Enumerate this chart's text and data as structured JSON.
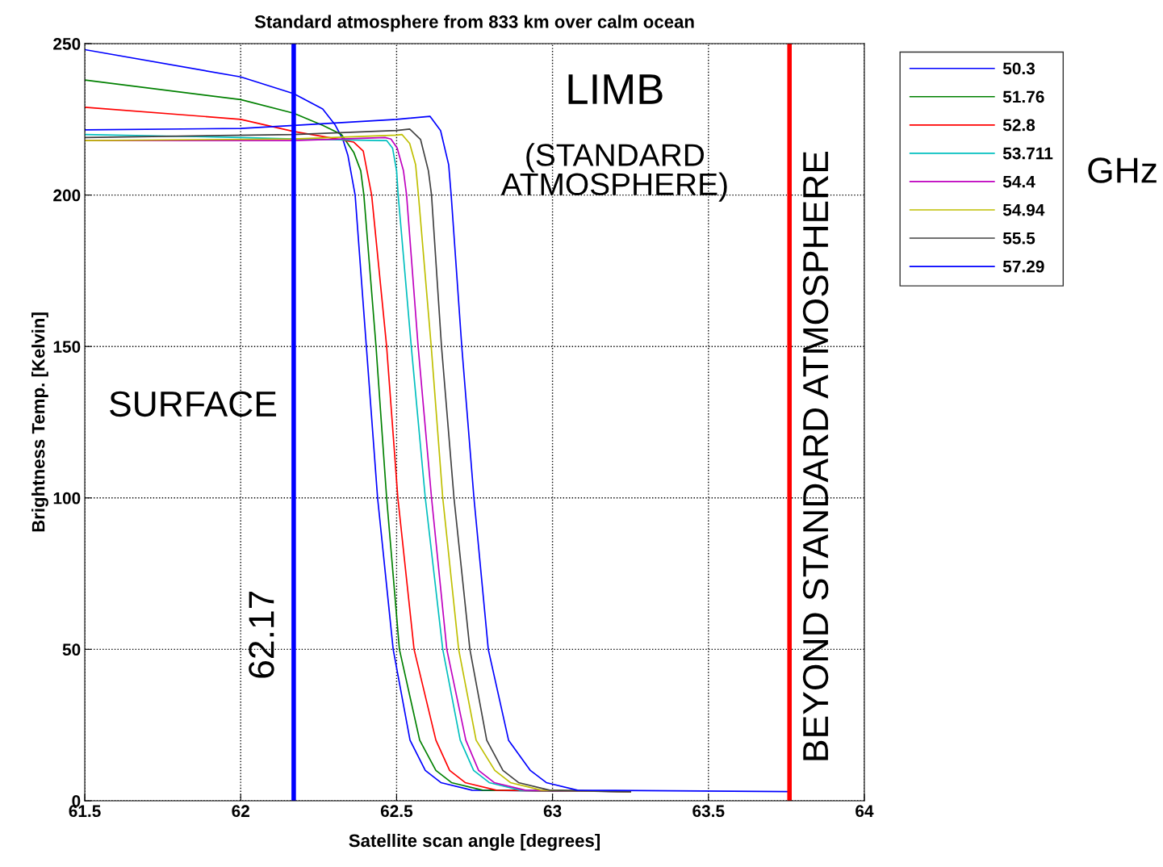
{
  "chart_data": {
    "type": "line",
    "title": "Standard atmosphere from 833 km over calm ocean",
    "xlabel": "Satellite scan angle [degrees]",
    "ylabel": "Brightness Temp. [Kelvin]",
    "legend_title": "GHz",
    "xlim": [
      61.5,
      64
    ],
    "xticks": [
      61.5,
      62,
      62.5,
      63,
      63.5,
      64
    ],
    "ylim": [
      0,
      250
    ],
    "yticks": [
      0,
      50,
      100,
      150,
      200,
      250
    ],
    "grid": true,
    "legend": "right",
    "marker": "none",
    "line_style": "solid",
    "series": [
      {
        "name": "50.3",
        "color": "#0000ff",
        "x": [
          61.5,
          62.0,
          62.17,
          62.263,
          62.302,
          62.328,
          62.344,
          62.367,
          62.403,
          62.439,
          62.489,
          62.543,
          62.592,
          62.642,
          62.742,
          63.25
        ],
        "values": [
          248,
          239,
          233.5,
          228.4,
          223.3,
          218.3,
          213,
          200,
          150,
          100,
          50,
          20,
          10,
          6,
          3.5,
          3
        ]
      },
      {
        "name": "51.76",
        "color": "#008000",
        "x": [
          61.5,
          62.0,
          62.17,
          62.263,
          62.323,
          62.363,
          62.385,
          62.395,
          62.434,
          62.468,
          62.509,
          62.574,
          62.626,
          62.676,
          62.776,
          63.25
        ],
        "values": [
          238,
          231.5,
          227,
          223,
          220,
          214,
          208,
          200,
          150,
          100,
          50,
          20,
          10,
          6,
          3.5,
          3
        ]
      },
      {
        "name": "52.8",
        "color": "#ff0000",
        "x": [
          61.5,
          62.0,
          62.17,
          62.283,
          62.362,
          62.393,
          62.42,
          62.468,
          62.504,
          62.556,
          62.626,
          62.67,
          62.72,
          62.82,
          63.25
        ],
        "values": [
          229,
          225,
          221,
          219,
          217.5,
          214.5,
          200,
          150,
          100,
          50,
          20,
          10,
          6,
          3.5,
          3
        ]
      },
      {
        "name": "53.711",
        "color": "#00bfbf",
        "x": [
          61.5,
          62.0,
          62.17,
          62.45,
          62.468,
          62.487,
          62.5,
          62.505,
          62.547,
          62.592,
          62.648,
          62.704,
          62.747,
          62.797,
          62.897,
          63.25
        ],
        "values": [
          220,
          219,
          218.5,
          218,
          218,
          215.5,
          208,
          200,
          150,
          100,
          50,
          20,
          10,
          6,
          3.5,
          3
        ]
      },
      {
        "name": "54.4",
        "color": "#bf00bf",
        "x": [
          61.5,
          62.17,
          62.463,
          62.482,
          62.502,
          62.522,
          62.532,
          62.569,
          62.612,
          62.661,
          62.722,
          62.763,
          62.813,
          62.913,
          63.25
        ],
        "values": [
          218,
          218,
          219,
          218.5,
          215.5,
          208,
          200,
          150,
          100,
          50,
          20,
          10,
          6,
          3.5,
          3
        ]
      },
      {
        "name": "54.94",
        "color": "#bfbf00",
        "x": [
          61.5,
          62.17,
          62.5,
          62.517,
          62.542,
          62.561,
          62.57,
          62.611,
          62.648,
          62.699,
          62.755,
          62.815,
          62.865,
          62.965,
          63.25
        ],
        "values": [
          218,
          218.5,
          219.8,
          220,
          217,
          210,
          200,
          150,
          100,
          50,
          20,
          10,
          6,
          3.5,
          3
        ]
      },
      {
        "name": "55.5",
        "color": "#404040",
        "x": [
          61.5,
          62.17,
          62.5,
          62.542,
          62.577,
          62.602,
          62.612,
          62.644,
          62.684,
          62.735,
          62.789,
          62.841,
          62.891,
          62.991,
          63.25
        ],
        "values": [
          219,
          220,
          221.3,
          221.8,
          218.3,
          208,
          200,
          150,
          100,
          50,
          20,
          10,
          6,
          3.5,
          3
        ]
      },
      {
        "name": "57.29",
        "color": "#0000ff",
        "x": [
          61.5,
          62.0,
          62.17,
          62.5,
          62.607,
          62.641,
          62.667,
          62.675,
          62.709,
          62.748,
          62.794,
          62.859,
          62.929,
          62.98,
          63.08,
          63.76
        ],
        "values": [
          221.5,
          222,
          223,
          225,
          226,
          221.3,
          210,
          200,
          150,
          100,
          50,
          20,
          10,
          6,
          3.5,
          3
        ]
      }
    ],
    "ref_lines": [
      {
        "axis": "x",
        "value": 62.17,
        "label": "62.17",
        "color": "#0000ff"
      },
      {
        "axis": "x",
        "value": 63.76,
        "label": "BEYOND STANDARD ATMOSPHERE",
        "color": "#ff0000"
      }
    ],
    "annotations": [
      "SURFACE",
      "LIMB",
      "(STANDARD\nATMOSPHERE)"
    ]
  }
}
